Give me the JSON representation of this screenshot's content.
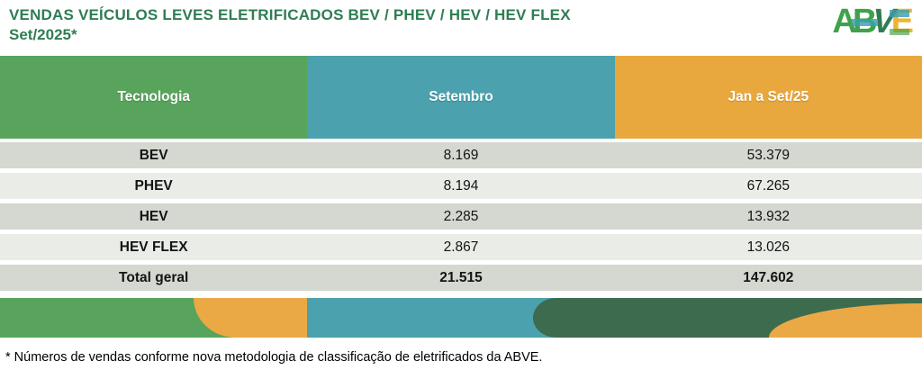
{
  "title": {
    "line1": "VENDAS VEÍCULOS LEVES ELETRIFICADOS BEV / PHEV / HEV / HEV FLEX",
    "line2": "Set/2025*"
  },
  "logo": {
    "letters": [
      "A",
      "B",
      "V",
      "E"
    ]
  },
  "table": {
    "columns": [
      {
        "label": "Tecnologia",
        "color": "#58a45c"
      },
      {
        "label": "Setembro",
        "color": "#4ba1ad"
      },
      {
        "label": "Jan a Set/25",
        "color": "#e9a83e"
      }
    ],
    "rows": [
      {
        "cells": [
          "BEV",
          "8.169",
          "53.379"
        ]
      },
      {
        "cells": [
          "PHEV",
          "8.194",
          "67.265"
        ]
      },
      {
        "cells": [
          "HEV",
          "2.285",
          "13.932"
        ]
      },
      {
        "cells": [
          "HEV FLEX",
          "2.867",
          "13.026"
        ]
      },
      {
        "cells": [
          "Total geral",
          "21.515",
          "147.602"
        ]
      }
    ]
  },
  "footnote": "* Números de vendas conforme nova metodologia de classificação de eletrificados da ABVE.",
  "colors": {
    "title_green": "#2e7d53",
    "header_green": "#58a45c",
    "header_teal": "#4ba1ad",
    "header_orange": "#e9a83e",
    "row_dark": "#d4d8d0",
    "row_light": "#eaece7",
    "strip_dark_green": "#3d6b4e",
    "strip_orange": "#eba945",
    "logo_green": "#3fa24a",
    "logo_dark_green": "#2e7d52",
    "logo_teal": "#3a9fae",
    "logo_yellow": "#eeb431"
  },
  "chart_data": {
    "type": "table",
    "title": "VENDAS VEÍCULOS LEVES ELETRIFICADOS BEV / PHEV / HEV / HEV FLEX Set/2025*",
    "columns": [
      "Tecnologia",
      "Setembro",
      "Jan a Set/25"
    ],
    "categories": [
      "BEV",
      "PHEV",
      "HEV",
      "HEV FLEX",
      "Total geral"
    ],
    "series": [
      {
        "name": "Setembro",
        "values": [
          8169,
          8194,
          2285,
          2867,
          21515
        ]
      },
      {
        "name": "Jan a Set/25",
        "values": [
          53379,
          67265,
          13932,
          13026,
          147602
        ]
      }
    ],
    "display_values": {
      "Setembro": [
        "8.169",
        "8.194",
        "2.285",
        "2.867",
        "21.515"
      ],
      "Jan a Set/25": [
        "53.379",
        "67.265",
        "13.932",
        "13.026",
        "147.602"
      ]
    },
    "footnote": "* Números de vendas conforme nova metodologia de classificação de eletrificados da ABVE."
  }
}
